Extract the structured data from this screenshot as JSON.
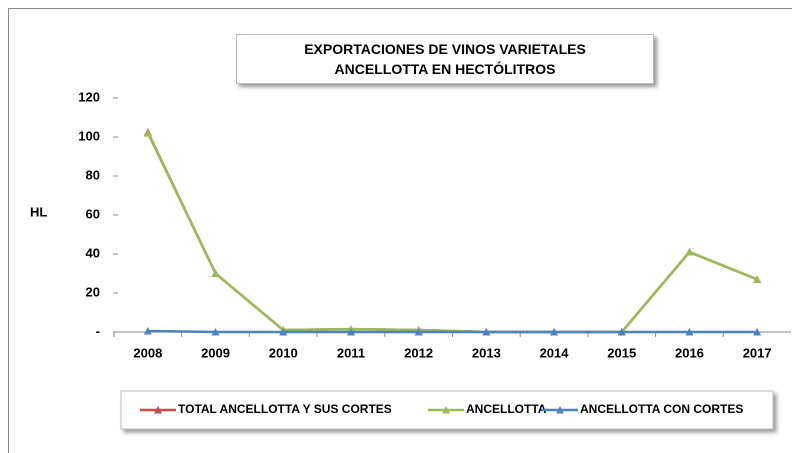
{
  "chart_data": {
    "type": "line",
    "title": "EXPORTACIONES DE VINOS VARIETALES ANCELLOTTA EN HECTÓLITROS",
    "y_label": "HL",
    "categories": [
      "2008",
      "2009",
      "2010",
      "2011",
      "2012",
      "2013",
      "2014",
      "2015",
      "2016",
      "2017"
    ],
    "series": [
      {
        "name": "TOTAL ANCELLOTTA Y SUS CORTES",
        "color": "#c0504d",
        "values": [
          102.5,
          30,
          1,
          1.5,
          1,
          0,
          0,
          0,
          41,
          27
        ]
      },
      {
        "name": "ANCELLOTTA",
        "color": "#9bbb59",
        "values": [
          102,
          30,
          1,
          1.5,
          1,
          0,
          0,
          0,
          41,
          27
        ]
      },
      {
        "name": "ANCELLOTTA CON CORTES",
        "color": "#4f81bd",
        "values": [
          0.5,
          0,
          0,
          0,
          0,
          0,
          0,
          0,
          0,
          0
        ]
      }
    ],
    "ylim": [
      0,
      120
    ],
    "yticks": [
      {
        "value": 0,
        "label": "-"
      },
      20,
      40,
      60,
      80,
      100,
      120
    ],
    "legend": "bottom"
  }
}
